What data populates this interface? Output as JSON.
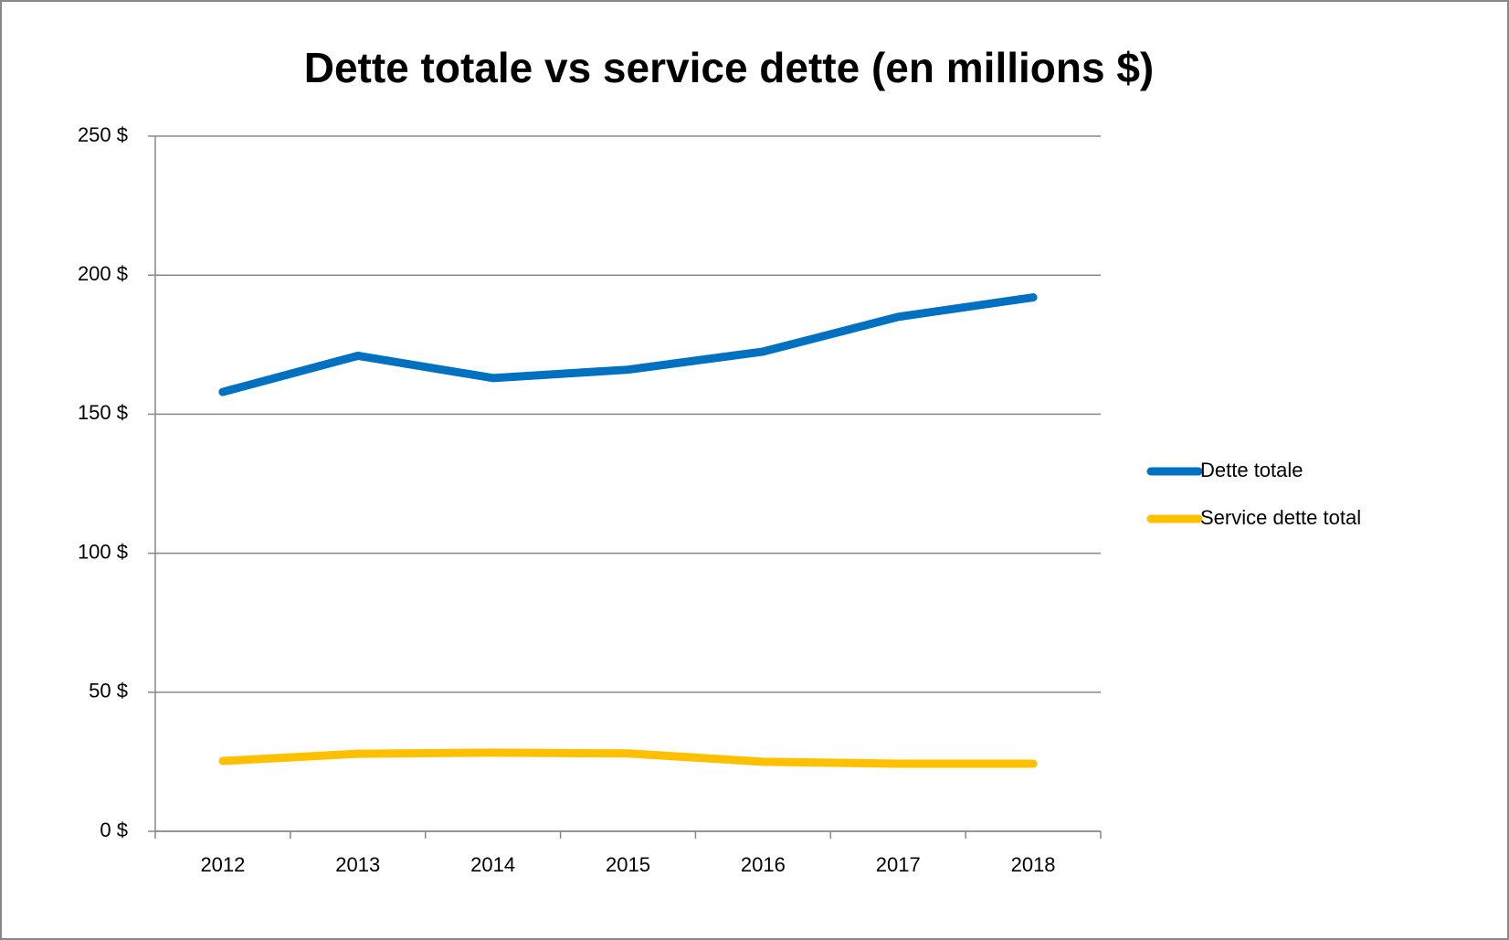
{
  "chart_data": {
    "type": "line",
    "title": "Dette totale vs service dette (en millions $)",
    "categories": [
      "2012",
      "2013",
      "2014",
      "2015",
      "2016",
      "2017",
      "2018"
    ],
    "series": [
      {
        "name": "Dette totale",
        "color": "#0070c0",
        "values": [
          158,
          171,
          163,
          166,
          172.5,
          185,
          192
        ]
      },
      {
        "name": "Service dette total",
        "color": "#ffc000",
        "values": [
          25.3,
          27.9,
          28.3,
          28,
          25,
          24.3,
          24.3
        ]
      }
    ],
    "ylim": [
      0,
      250
    ],
    "yticks": [
      {
        "value": 0,
        "label": "0 $"
      },
      {
        "value": 50,
        "label": "50 $"
      },
      {
        "value": 100,
        "label": "100 $"
      },
      {
        "value": 150,
        "label": "150 $"
      },
      {
        "value": 200,
        "label": "200 $"
      },
      {
        "value": 250,
        "label": "250 $"
      }
    ],
    "grid": true,
    "legend": "right"
  }
}
